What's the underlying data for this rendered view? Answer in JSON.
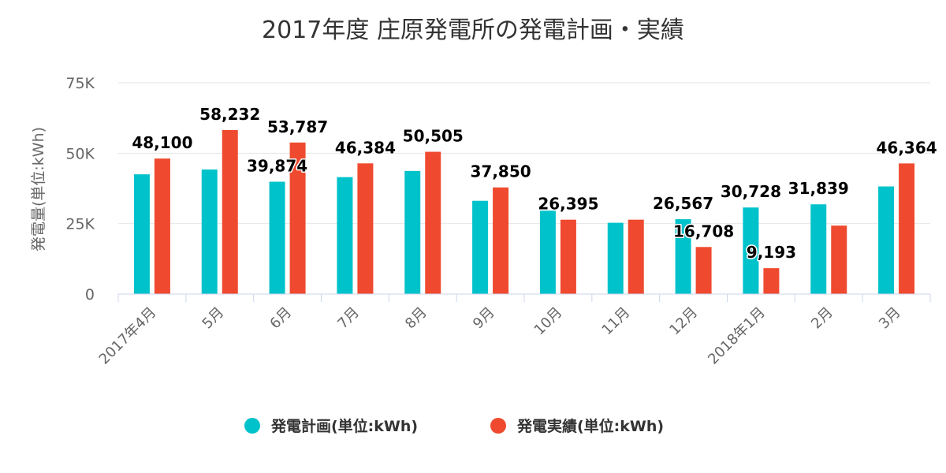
{
  "chart_data": {
    "type": "bar",
    "title": "2017年度 庄原発電所の発電計画・実績",
    "ylabel": "発電量(単位:kWh)",
    "xlabel": "",
    "ylim": [
      0,
      75000
    ],
    "yticks": [
      0,
      25000,
      50000,
      75000
    ],
    "ytick_labels": [
      "0",
      "25K",
      "50K",
      "75K"
    ],
    "grid": true,
    "legend_position": "bottom",
    "categories": [
      "2017年4月",
      "5月",
      "6月",
      "7月",
      "8月",
      "9月",
      "10月",
      "11月",
      "12月",
      "2018年1月",
      "2月",
      "3月"
    ],
    "series": [
      {
        "name": "発電計画(単位:kWh)",
        "color": "#00c2cb",
        "values": [
          42500,
          44200,
          39874,
          41500,
          43700,
          33100,
          29600,
          25300,
          26567,
          30728,
          31839,
          38200
        ],
        "labels": [
          "",
          "",
          "39,874",
          "",
          "",
          "",
          "",
          "",
          "26,567",
          "30,728",
          "31,839",
          ""
        ]
      },
      {
        "name": "発電実績(単位:kWh)",
        "color": "#ef4a2f",
        "values": [
          48100,
          58232,
          53787,
          46384,
          50505,
          37850,
          26395,
          26400,
          16708,
          9193,
          24300,
          46364
        ],
        "labels": [
          "48,100",
          "58,232",
          "53,787",
          "46,384",
          "50,505",
          "37,850",
          "26,395",
          "",
          "16,708",
          "9,193",
          "",
          "46,364"
        ]
      }
    ]
  }
}
